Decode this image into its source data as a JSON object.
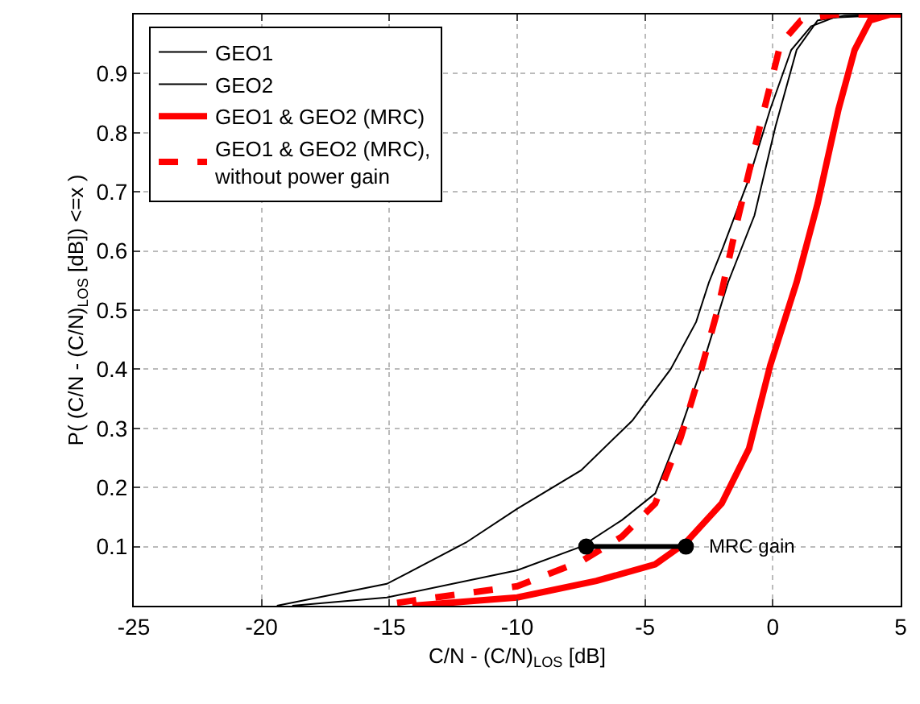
{
  "chart_data": {
    "type": "line",
    "xlabel": "C/N - (C/N)$_{LOS}$ [dB]",
    "ylabel": "P( (C/N - (C/N)$_{LOS}$ [dB]) <=x )",
    "xlim": [
      -25,
      5
    ],
    "xticks": [
      -25,
      -20,
      -15,
      -10,
      -5,
      0,
      5
    ],
    "ylim": [
      0,
      1
    ],
    "yticks": [
      0.1,
      0.2,
      0.3,
      0.4,
      0.5,
      0.6,
      0.7,
      0.8,
      0.9
    ],
    "grid": true,
    "legend": "top left",
    "marker": "none",
    "series": [
      {
        "name": "GEO1",
        "color": "#000000",
        "line_style": "solid",
        "x": [
          -19.4,
          -15.1,
          -12.0,
          -10.0,
          -7.5,
          -5.5,
          -4.0,
          -3.0,
          -2.5,
          -1.95,
          -0.93,
          -0.1,
          0.72,
          1.5,
          2.4,
          5
        ],
        "values": [
          0,
          0.037,
          0.107,
          0.164,
          0.229,
          0.313,
          0.4,
          0.48,
          0.547,
          0.606,
          0.723,
          0.84,
          0.94,
          0.98,
          0.995,
          1
        ]
      },
      {
        "name": "GEO2",
        "color": "#000000",
        "line_style": "solid",
        "x": [
          -18.8,
          -15.1,
          -10.0,
          -7.5,
          -5.9,
          -4.6,
          -3.6,
          -2.8,
          -1.75,
          -0.72,
          0.1,
          0.93,
          1.75,
          2.8,
          4.6
        ],
        "values": [
          0,
          0.014,
          0.06,
          0.1,
          0.145,
          0.19,
          0.3,
          0.4,
          0.547,
          0.66,
          0.81,
          0.94,
          0.99,
          0.998,
          1
        ]
      },
      {
        "name": "GEO1 & GEO2 (MRC)",
        "color": "#ff0000",
        "line_style": "solid",
        "x": [
          -14.1,
          -10.0,
          -6.9,
          -4.6,
          -3.4,
          -2.0,
          -0.93,
          -0.1,
          0.93,
          1.75,
          2.57,
          3.2,
          3.8,
          4.6,
          5
        ],
        "values": [
          0,
          0.014,
          0.042,
          0.07,
          0.107,
          0.173,
          0.266,
          0.407,
          0.547,
          0.68,
          0.84,
          0.94,
          0.99,
          1,
          1
        ]
      },
      {
        "name": "GEO1 & GEO2 (MRC),\nwithout power gain",
        "color": "#ff0000",
        "line_style": "dashed",
        "x": [
          -14.7,
          -10.0,
          -7.5,
          -5.9,
          -4.6,
          -3.6,
          -2.8,
          -2.16,
          -1.34,
          -0.51,
          0.3,
          1.1,
          2.4,
          5
        ],
        "values": [
          0.005,
          0.033,
          0.075,
          0.117,
          0.173,
          0.285,
          0.4,
          0.5,
          0.66,
          0.81,
          0.95,
          0.99,
          1,
          1
        ]
      },
      {
        "color": "#000000",
        "line_style": "solid",
        "marker": "circle",
        "x": [
          -7.3,
          -3.4
        ],
        "values": [
          0.1,
          0.1
        ]
      }
    ],
    "annotations": [
      {
        "text": "MRC gain",
        "x": -3.4,
        "y": 0.1
      }
    ]
  }
}
